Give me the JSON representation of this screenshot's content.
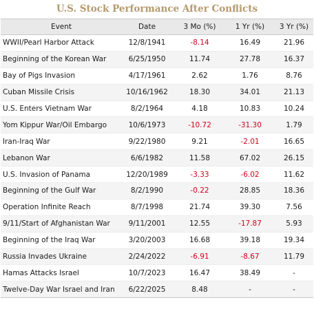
{
  "title": "U.S. Stock Performance After Conflicts",
  "columns": [
    "Event",
    "Date",
    "3 Mo (%)",
    "1 Yr (%)",
    "3 Yr (%)"
  ],
  "rows": [
    {
      "event": "WWII/Pearl Harbor Attack",
      "date": "12/8/1941",
      "m3": "-8.14",
      "y1": "16.49",
      "y3": "21.96"
    },
    {
      "event": "Beginning of the Korean War",
      "date": "6/25/1950",
      "m3": "11.74",
      "y1": "27.78",
      "y3": "16.37"
    },
    {
      "event": "Bay of Pigs Invasion",
      "date": "4/17/1961",
      "m3": "2.62",
      "y1": "1.76",
      "y3": "8.76"
    },
    {
      "event": "Cuban Missile Crisis",
      "date": "10/16/1962",
      "m3": "18.30",
      "y1": "34.01",
      "y3": "21.13"
    },
    {
      "event": "U.S. Enters Vietnam War",
      "date": "8/2/1964",
      "m3": "4.18",
      "y1": "10.83",
      "y3": "10.24"
    },
    {
      "event": "Yom Kippur War/Oil Embargo",
      "date": "10/6/1973",
      "m3": "-10.72",
      "y1": "-31.30",
      "y3": "1.79"
    },
    {
      "event": "Iran-Iraq War",
      "date": "9/22/1980",
      "m3": "9.21",
      "y1": "-2.01",
      "y3": "16.65"
    },
    {
      "event": "Lebanon War",
      "date": "6/6/1982",
      "m3": "11.58",
      "y1": "67.02",
      "y3": "26.15"
    },
    {
      "event": "U.S. Invasion of Panama",
      "date": "12/20/1989",
      "m3": "-3.33",
      "y1": "-6.02",
      "y3": "11.62"
    },
    {
      "event": "Beginning of the Gulf War",
      "date": "8/2/1990",
      "m3": "-0.22",
      "y1": "28.85",
      "y3": "18.36"
    },
    {
      "event": "Operation Infinite Reach",
      "date": "8/7/1998",
      "m3": "21.74",
      "y1": "39.30",
      "y3": "7.56"
    },
    {
      "event": "9/11/Start of Afghanistan War",
      "date": "9/11/2001",
      "m3": "12.55",
      "y1": "-17.87",
      "y3": "5.93"
    },
    {
      "event": "Beginning of the Iraq War",
      "date": "3/20/2003",
      "m3": "16.68",
      "y1": "39.18",
      "y3": "19.34"
    },
    {
      "event": "Russia Invades Ukraine",
      "date": "2/24/2022",
      "m3": "-6.91",
      "y1": "-8.67",
      "y3": "11.79"
    },
    {
      "event": "Hamas Attacks Israel",
      "date": "10/7/2023",
      "m3": "16.47",
      "y1": "38.49",
      "y3": "-"
    },
    {
      "event": "Twelve-Day War Israel and Iran",
      "date": "6/22/2025",
      "m3": "8.48",
      "y1": "-",
      "y3": "-"
    }
  ],
  "colors": {
    "title": "#b59a6d",
    "negative": "#d0021b",
    "header_bg": "#e9e9e9",
    "stripe": "#f4f4f4"
  }
}
